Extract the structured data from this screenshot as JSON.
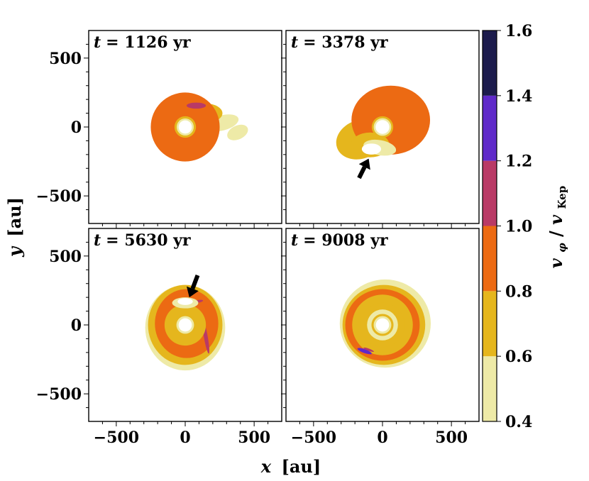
{
  "chart_data": {
    "type": "contour-map",
    "quantity": "vphi_over_vKep",
    "shared_axes": {
      "xlabel_var": "x",
      "xlabel_unit": "[au]",
      "ylabel_var": "y",
      "ylabel_unit": "[au]",
      "xlim": [
        -700,
        700
      ],
      "ylim": [
        -700,
        700
      ],
      "major_ticks": [
        -500,
        0,
        500
      ],
      "major_tick_labels": [
        "−500",
        "0",
        "500"
      ],
      "minor_tick_step": 100
    },
    "panels": [
      {
        "name": "panel-t1126",
        "label": "t = 1126 yr",
        "t_prefix": "t",
        "t_value": "= 1126 yr",
        "contours": [
          {
            "level": "0.4-0.6",
            "kind": "ellipse",
            "cx": 380,
            "cy": -40,
            "rx": 80,
            "ry": 50,
            "rot": 25
          },
          {
            "level": "0.4-0.6",
            "kind": "ellipse",
            "cx": 270,
            "cy": 30,
            "rx": 120,
            "ry": 55,
            "rot": 15
          },
          {
            "level": "0.6-0.8",
            "kind": "ellipse",
            "cx": 150,
            "cy": 100,
            "rx": 120,
            "ry": 70,
            "rot": 0
          },
          {
            "level": "0.8-1.0",
            "kind": "ring",
            "cx": 0,
            "cy": 0,
            "r_out": 250,
            "r_in": 0
          },
          {
            "level": "1.0-1.2",
            "kind": "ellipse",
            "cx": 80,
            "cy": 155,
            "rx": 70,
            "ry": 22,
            "rot": 0
          },
          {
            "level": "0.6-0.8",
            "kind": "ring",
            "cx": 0,
            "cy": 0,
            "r_out": 78,
            "r_in": 0
          },
          {
            "level": "0.4-0.6",
            "kind": "ring",
            "cx": 0,
            "cy": 0,
            "r_out": 62,
            "r_in": 0
          },
          {
            "level": "white",
            "kind": "ring",
            "cx": 0,
            "cy": 0,
            "r_out": 48,
            "r_in": 0
          }
        ]
      },
      {
        "name": "panel-t3378",
        "label": "t = 3378 yr",
        "t_prefix": "t",
        "t_value": "= 3378 yr",
        "contours": [
          {
            "level": "0.6-0.8",
            "kind": "ellipse",
            "cx": -160,
            "cy": -90,
            "rx": 180,
            "ry": 140,
            "rot": 20
          },
          {
            "level": "0.8-1.0",
            "kind": "ellipse",
            "cx": 60,
            "cy": 50,
            "rx": 285,
            "ry": 250,
            "rot": 0
          },
          {
            "level": "0.6-0.8",
            "kind": "ellipse",
            "cx": -90,
            "cy": -130,
            "rx": 140,
            "ry": 90,
            "rot": 0
          },
          {
            "level": "0.4-0.6",
            "kind": "ellipse",
            "cx": -20,
            "cy": -150,
            "rx": 120,
            "ry": 55,
            "rot": -10
          },
          {
            "level": "white",
            "kind": "ellipse",
            "cx": -80,
            "cy": -160,
            "rx": 70,
            "ry": 40,
            "rot": 0
          },
          {
            "level": "0.6-0.8",
            "kind": "ring",
            "cx": 0,
            "cy": 0,
            "r_out": 78,
            "r_in": 0
          },
          {
            "level": "0.4-0.6",
            "kind": "ring",
            "cx": 0,
            "cy": 0,
            "r_out": 64,
            "r_in": 0
          },
          {
            "level": "white",
            "kind": "ring",
            "cx": 0,
            "cy": 0,
            "r_out": 50,
            "r_in": 0
          }
        ],
        "arrow": {
          "from": [
            -170,
            -370
          ],
          "to": [
            -100,
            -230
          ]
        }
      },
      {
        "name": "panel-t5630",
        "label": "t = 5630 yr",
        "t_prefix": "t",
        "t_value": "= 5630 yr",
        "contours": [
          {
            "level": "0.4-0.6",
            "kind": "ellipse",
            "cx": 0,
            "cy": -20,
            "rx": 290,
            "ry": 310,
            "rot": 0
          },
          {
            "level": "0.6-0.8",
            "kind": "ellipse",
            "cx": 0,
            "cy": 0,
            "rx": 270,
            "ry": 290,
            "rot": 0
          },
          {
            "level": "0.8-1.0",
            "kind": "ellipse",
            "cx": 10,
            "cy": 10,
            "rx": 230,
            "ry": 250,
            "rot": 0
          },
          {
            "level": "1.0-1.2",
            "kind": "ellipse",
            "cx": 150,
            "cy": -90,
            "rx": 14,
            "ry": 120,
            "rot": 10
          },
          {
            "level": "1.0-1.2",
            "kind": "ellipse",
            "cx": 90,
            "cy": 170,
            "rx": 40,
            "ry": 10,
            "rot": 10
          },
          {
            "level": "0.6-0.8",
            "kind": "ring",
            "cx": 0,
            "cy": 0,
            "r_out": 150,
            "r_in": 130
          },
          {
            "level": "0.4-0.6",
            "kind": "ellipse",
            "cx": 0,
            "cy": 160,
            "rx": 95,
            "ry": 40,
            "rot": 0
          },
          {
            "level": "white",
            "kind": "ellipse",
            "cx": 0,
            "cy": 170,
            "rx": 55,
            "ry": 25,
            "rot": 0
          },
          {
            "level": "0.6-0.8",
            "kind": "ring",
            "cx": 0,
            "cy": 0,
            "r_out": 80,
            "r_in": 0
          },
          {
            "level": "0.4-0.6",
            "kind": "ring",
            "cx": 0,
            "cy": 0,
            "r_out": 64,
            "r_in": 0
          },
          {
            "level": "white",
            "kind": "ring",
            "cx": 0,
            "cy": 0,
            "r_out": 48,
            "r_in": 0
          }
        ],
        "arrow": {
          "from": [
            90,
            360
          ],
          "to": [
            30,
            200
          ]
        }
      },
      {
        "name": "panel-t9008",
        "label": "t = 9008 yr",
        "t_prefix": "t",
        "t_value": "= 9008 yr",
        "contours": [
          {
            "level": "0.4-0.6",
            "kind": "ellipse",
            "cx": 20,
            "cy": 10,
            "rx": 330,
            "ry": 320,
            "rot": 0
          },
          {
            "level": "0.6-0.8",
            "kind": "ellipse",
            "cx": 10,
            "cy": 0,
            "rx": 300,
            "ry": 290,
            "rot": 0
          },
          {
            "level": "0.8-1.0",
            "kind": "ellipse",
            "cx": 0,
            "cy": 0,
            "rx": 270,
            "ry": 260,
            "rot": 0
          },
          {
            "level": "0.6-0.8",
            "kind": "ring",
            "cx": 0,
            "cy": 0,
            "r_out": 220,
            "r_in": 200
          },
          {
            "level": "0.6-0.8",
            "kind": "ring",
            "cx": 0,
            "cy": 0,
            "r_out": 160,
            "r_in": 142
          },
          {
            "level": "0.4-0.6",
            "kind": "ring",
            "cx": 0,
            "cy": 0,
            "r_out": 112,
            "r_in": 100
          },
          {
            "level": "1.2-1.4",
            "kind": "ellipse",
            "cx": -130,
            "cy": -190,
            "rx": 55,
            "ry": 14,
            "rot": -20
          },
          {
            "level": "1.0-1.2",
            "kind": "ellipse",
            "cx": -100,
            "cy": -180,
            "rx": 40,
            "ry": 8,
            "rot": -20
          },
          {
            "level": "0.6-0.8",
            "kind": "ring",
            "cx": 0,
            "cy": 0,
            "r_out": 80,
            "r_in": 0
          },
          {
            "level": "0.4-0.6",
            "kind": "ring",
            "cx": 0,
            "cy": 0,
            "r_out": 64,
            "r_in": 0
          },
          {
            "level": "white",
            "kind": "ring",
            "cx": 0,
            "cy": 0,
            "r_out": 48,
            "r_in": 0
          }
        ]
      }
    ],
    "colorbar": {
      "label_v": "v",
      "label_sub1": "φ",
      "label_slash": "/",
      "label_v2": "v",
      "label_sub2": "Kep",
      "range": [
        0.4,
        1.6
      ],
      "bounds": [
        0.4,
        0.6,
        0.8,
        1.0,
        1.2,
        1.4,
        1.6
      ],
      "tick_labels": [
        "0.4",
        "0.6",
        "0.8",
        "1.0",
        "1.2",
        "1.4",
        "1.6"
      ],
      "colors": [
        "#eeeaa7",
        "#e5b61d",
        "#ec6a13",
        "#b93a66",
        "#5f29c9",
        "#1c1b4c"
      ]
    },
    "level_colors": {
      "0.4-0.6": "#eeeaa7",
      "0.6-0.8": "#e5b61d",
      "0.8-1.0": "#ec6a13",
      "1.0-1.2": "#b93a66",
      "1.2-1.4": "#5f29c9",
      "1.4-1.6": "#1c1b4c",
      "white": "#ffffff"
    }
  }
}
